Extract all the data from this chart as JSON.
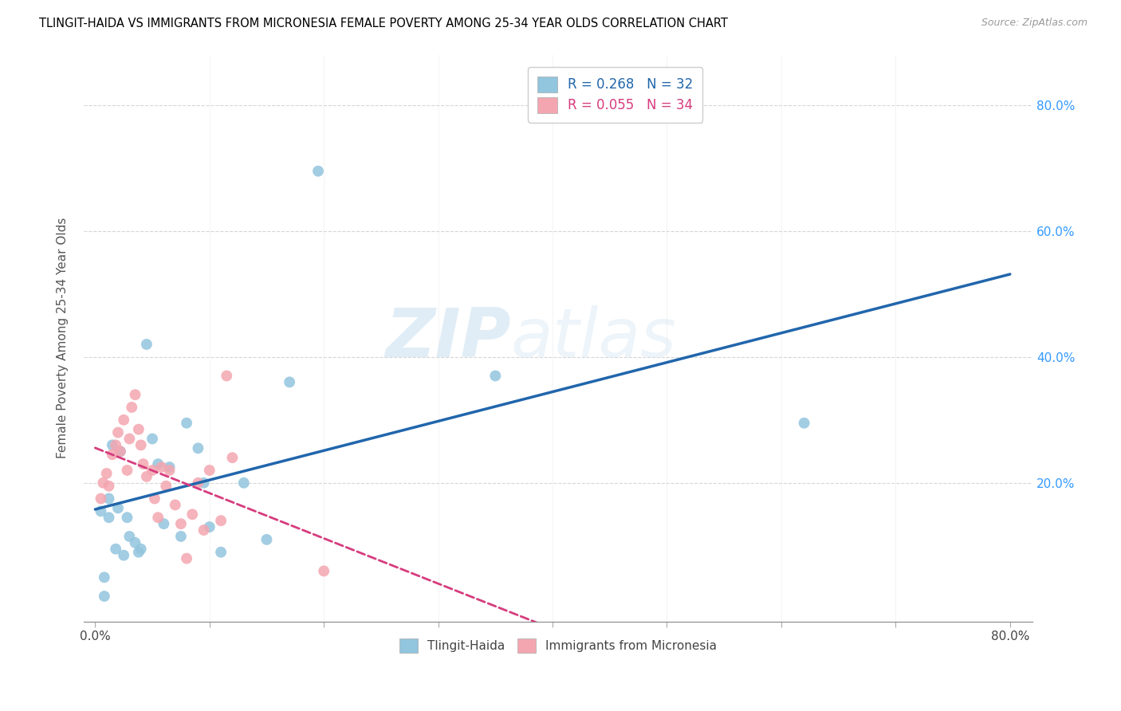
{
  "title": "TLINGIT-HAIDA VS IMMIGRANTS FROM MICRONESIA FEMALE POVERTY AMONG 25-34 YEAR OLDS CORRELATION CHART",
  "source": "Source: ZipAtlas.com",
  "ylabel": "Female Poverty Among 25-34 Year Olds",
  "xlim": [
    -0.01,
    0.82
  ],
  "ylim": [
    -0.02,
    0.88
  ],
  "xticks": [
    0.0,
    0.1,
    0.2,
    0.3,
    0.4,
    0.5,
    0.6,
    0.7,
    0.8
  ],
  "xtick_labels_show": [
    "0.0%",
    "",
    "",
    "",
    "",
    "",
    "",
    "",
    "80.0%"
  ],
  "yticks": [
    0.2,
    0.4,
    0.6,
    0.8
  ],
  "ytick_labels": [
    "20.0%",
    "40.0%",
    "60.0%",
    "80.0%"
  ],
  "legend1_label": "Tlingit-Haida",
  "legend2_label": "Immigrants from Micronesia",
  "R1": "0.268",
  "N1": "32",
  "R2": "0.055",
  "N2": "34",
  "color1": "#92c5de",
  "color2": "#f4a6b0",
  "line1_color": "#2166ac",
  "line2_color": "#d63c7e",
  "watermark_zip": "ZIP",
  "watermark_atlas": "atlas",
  "blue_x": [
    0.005,
    0.008,
    0.008,
    0.012,
    0.012,
    0.015,
    0.018,
    0.02,
    0.022,
    0.025,
    0.028,
    0.03,
    0.035,
    0.038,
    0.04,
    0.045,
    0.05,
    0.055,
    0.06,
    0.065,
    0.075,
    0.08,
    0.09,
    0.095,
    0.1,
    0.11,
    0.13,
    0.15,
    0.17,
    0.195,
    0.35,
    0.62
  ],
  "blue_y": [
    0.155,
    0.02,
    0.05,
    0.175,
    0.145,
    0.26,
    0.095,
    0.16,
    0.25,
    0.085,
    0.145,
    0.115,
    0.105,
    0.09,
    0.095,
    0.42,
    0.27,
    0.23,
    0.135,
    0.225,
    0.115,
    0.295,
    0.255,
    0.2,
    0.13,
    0.09,
    0.2,
    0.11,
    0.36,
    0.695,
    0.37,
    0.295
  ],
  "pink_x": [
    0.005,
    0.007,
    0.01,
    0.012,
    0.015,
    0.018,
    0.02,
    0.022,
    0.025,
    0.028,
    0.03,
    0.032,
    0.035,
    0.038,
    0.04,
    0.042,
    0.045,
    0.05,
    0.052,
    0.055,
    0.058,
    0.062,
    0.065,
    0.07,
    0.075,
    0.08,
    0.085,
    0.09,
    0.095,
    0.1,
    0.11,
    0.115,
    0.12,
    0.2
  ],
  "pink_y": [
    0.175,
    0.2,
    0.215,
    0.195,
    0.245,
    0.26,
    0.28,
    0.25,
    0.3,
    0.22,
    0.27,
    0.32,
    0.34,
    0.285,
    0.26,
    0.23,
    0.21,
    0.22,
    0.175,
    0.145,
    0.225,
    0.195,
    0.22,
    0.165,
    0.135,
    0.08,
    0.15,
    0.2,
    0.125,
    0.22,
    0.14,
    0.37,
    0.24,
    0.06
  ]
}
